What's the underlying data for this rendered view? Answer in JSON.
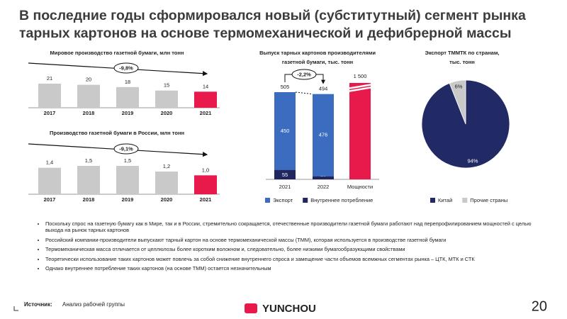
{
  "header": {
    "title": [
      "В последние годы сформировался новый (субститутный) сегмент рынка",
      "тарных картонов на основе термомеханической и дефибрерной массы"
    ]
  },
  "chart_data": [
    {
      "type": "bar",
      "title": "Мировое производство газетной бумаги, млн тонн",
      "categories": [
        "2017",
        "2018",
        "2019",
        "2020",
        "2021"
      ],
      "values": [
        21,
        20,
        18,
        15,
        14
      ],
      "colors": [
        "#c9c9c9",
        "#c9c9c9",
        "#c9c9c9",
        "#c9c9c9",
        "#e8194b"
      ],
      "annotation": "-9,8%"
    },
    {
      "type": "bar",
      "title": "Производство газетной бумаги в России, млн тонн",
      "categories": [
        "2017",
        "2018",
        "2019",
        "2020",
        "2021"
      ],
      "values": [
        1.4,
        1.5,
        1.5,
        1.2,
        1.0
      ],
      "value_labels": [
        "1,4",
        "1,5",
        "1,5",
        "1,2",
        "1,0"
      ],
      "colors": [
        "#c9c9c9",
        "#c9c9c9",
        "#c9c9c9",
        "#c9c9c9",
        "#e8194b"
      ],
      "annotation": "-9,1%"
    },
    {
      "type": "stacked_bar",
      "title": [
        "Выпуск тарных картонов производителями",
        "газетной бумаги, тыс. тонн"
      ],
      "categories": [
        "2021",
        "2022",
        "Мощности"
      ],
      "series": [
        {
          "name": "Экспорт",
          "color": "#3b6cc0",
          "values": [
            450,
            476,
            null
          ]
        },
        {
          "name": "Внутреннее потребление",
          "color": "#1f2660",
          "values": [
            55,
            18,
            null
          ]
        }
      ],
      "totals": [
        505,
        494,
        null
      ],
      "capacity": {
        "value": 1500,
        "value_label": "1 500",
        "color": "#e8194b"
      },
      "annotation": "-2,2%"
    },
    {
      "type": "pie",
      "title": [
        "Экспорт ТММТК по странам,",
        "тыс. тонн"
      ],
      "labels": [
        "Китай",
        "Прочие страны"
      ],
      "values": [
        94,
        6
      ],
      "value_labels": [
        "94%",
        "6%"
      ],
      "colors": [
        "#222a66",
        "#c9c9c9"
      ]
    }
  ],
  "bullets": [
    "Поскольку спрос на газетную бумагу как в Мире, так и в России, стремительно сокращается, отечественные производители газетной бумаги работают над перепрофилированием мощностей с целью выхода на рынок тарных картонов",
    "Российский компании-производители выпускают тарный картон на основе термомеханической массы (ТММ), которая используется в производстве газетной бумаги",
    "Термомеханическая масса отличается от целлюлозы более коротким волокном и, следовательно, более низкими бумагообразующими свойствами",
    "Теоретически использование таких картонов может повлечь за собой снижение внутреннего спроса и замещение части объемов всемжных сегментах рынка – ЦТК, МТК и СТК",
    "Однако внутреннее потребление таких картонов (на основе ТММ) остается незначительным"
  ],
  "footer": {
    "source_label": "Источник:",
    "source": "Анализ рабочей группы",
    "logo": "YUNCHOU",
    "page": "20"
  }
}
